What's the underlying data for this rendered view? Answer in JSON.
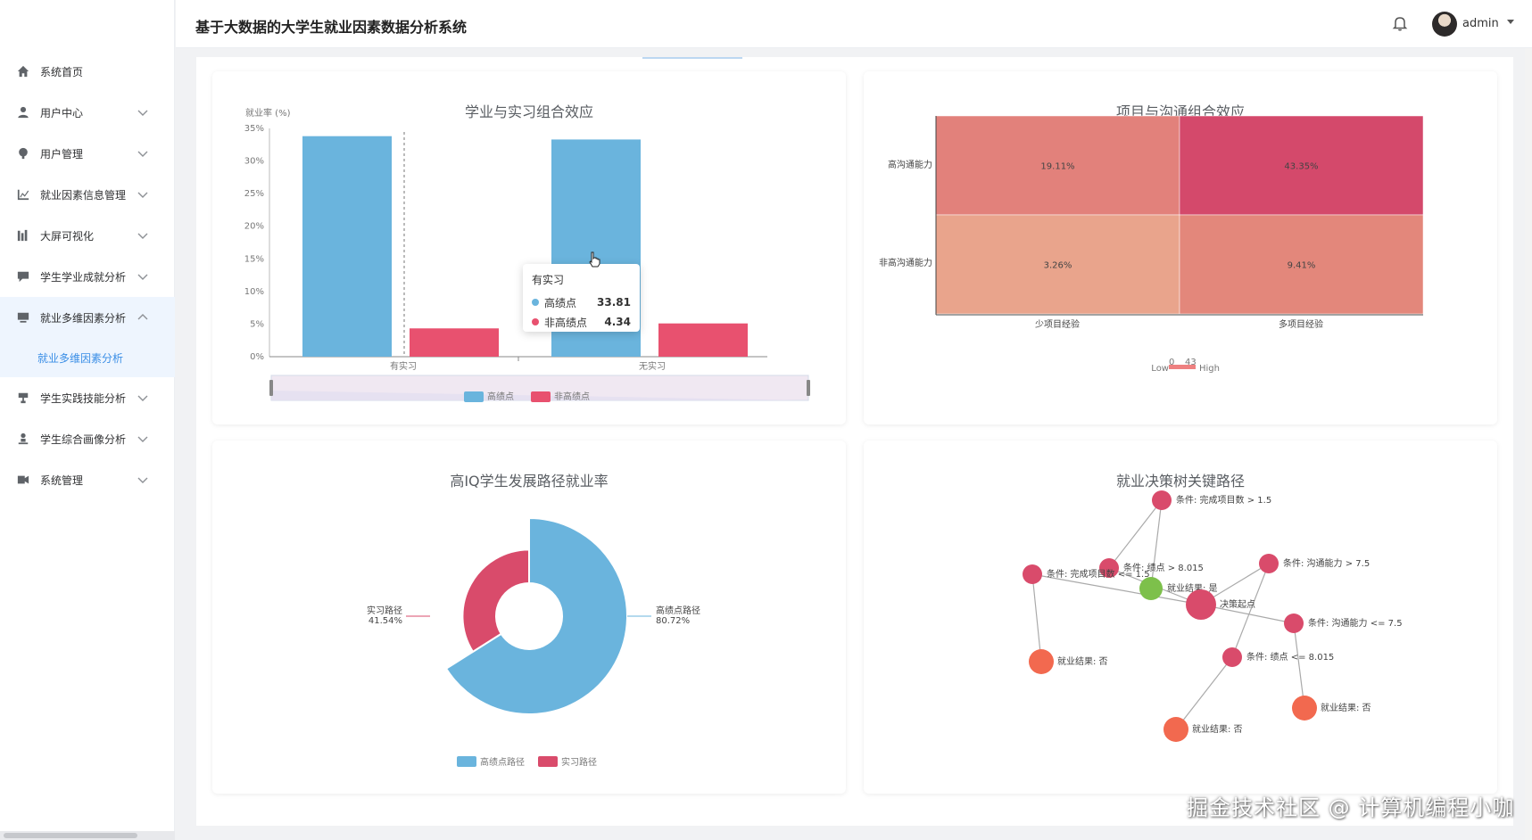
{
  "header": {
    "title": "基于大数据的大学生就业因素数据分析系统",
    "user": "admin"
  },
  "sidebar": {
    "items": [
      {
        "label": "系统首页",
        "icon": "home-icon",
        "expandable": false
      },
      {
        "label": "用户中心",
        "icon": "user-icon",
        "expandable": true
      },
      {
        "label": "用户管理",
        "icon": "user-manage-icon",
        "expandable": true
      },
      {
        "label": "就业因素信息管理",
        "icon": "chart-icon",
        "expandable": true
      },
      {
        "label": "大屏可视化",
        "icon": "bars-icon",
        "expandable": true
      },
      {
        "label": "学生学业成就分析",
        "icon": "comment-icon",
        "expandable": true
      },
      {
        "label": "就业多维因素分析",
        "icon": "monitor-icon",
        "expandable": true,
        "open": true
      },
      {
        "label": "学生实践技能分析",
        "icon": "cup-icon",
        "expandable": true
      },
      {
        "label": "学生综合画像分析",
        "icon": "person-icon",
        "expandable": true
      },
      {
        "label": "系统管理",
        "icon": "settings-icon",
        "expandable": true
      }
    ],
    "subitem": "就业多维因素分析"
  },
  "charts": {
    "c1": {
      "title": "学业与实习组合效应",
      "ylabel": "就业率 (%)",
      "yticks": [
        "35%",
        "30%",
        "25%",
        "20%",
        "15%",
        "10%",
        "5%",
        "0%"
      ],
      "legend": [
        "高绩点",
        "非高绩点"
      ],
      "tooltip": {
        "title": "有实习",
        "rows": [
          {
            "name": "高绩点",
            "value": "33.81"
          },
          {
            "name": "非高绩点",
            "value": "4.34"
          }
        ]
      }
    },
    "c2": {
      "title": "项目与沟通组合效应",
      "row_labels": [
        "高沟通能力",
        "非高沟通能力"
      ],
      "col_labels": [
        "少项目经验",
        "多项目经验"
      ],
      "cells": [
        [
          "19.11%",
          "43.35%"
        ],
        [
          "3.26%",
          "9.41%"
        ]
      ],
      "visualmap": {
        "low": "Low",
        "high": "High",
        "min": "0",
        "max": "43"
      }
    },
    "c3": {
      "title": "高IQ学生发展路径就业率",
      "slices": [
        {
          "name": "高绩点路径",
          "pct": "80.72%"
        },
        {
          "name": "实习路径",
          "pct": "41.54%"
        }
      ],
      "legend": [
        "高绩点路径",
        "实习路径"
      ]
    },
    "c4": {
      "title": "就业决策树关键路径",
      "nodes": [
        "条件: 完成项目数 > 1.5",
        "条件: 绩点 > 8.015",
        "条件: 完成项目数 <= 1.5",
        "就业结果: 是",
        "决策起点",
        "条件: 沟通能力 > 7.5",
        "条件: 沟通能力 <= 7.5",
        "条件: 绩点 <= 8.015",
        "就业结果: 否",
        "就业结果: 否",
        "就业结果: 否"
      ]
    }
  },
  "chart_data": [
    {
      "type": "bar",
      "title": "学业与实习组合效应",
      "ylabel": "就业率 (%)",
      "categories": [
        "有实习",
        "无实习"
      ],
      "series": [
        {
          "name": "高绩点",
          "values": [
            33.81,
            33.3
          ]
        },
        {
          "name": "非高绩点",
          "values": [
            4.34,
            5.1
          ]
        }
      ],
      "ylim": [
        0,
        35
      ],
      "colors": [
        "#6ab4dd",
        "#e8516f"
      ]
    },
    {
      "type": "heatmap",
      "title": "项目与沟通组合效应",
      "x": [
        "少项目经验",
        "多项目经验"
      ],
      "y": [
        "高沟通能力",
        "非高沟通能力"
      ],
      "values": [
        [
          19.11,
          43.35
        ],
        [
          3.26,
          9.41
        ]
      ],
      "range": [
        0,
        43
      ]
    },
    {
      "type": "pie",
      "title": "高IQ学生发展路径就业率",
      "slices": [
        {
          "name": "高绩点路径",
          "value": 80.72
        },
        {
          "name": "实习路径",
          "value": 41.54
        }
      ]
    }
  ],
  "colors": {
    "accent": "#3a8ee6",
    "blue": "#6ab4dd",
    "red": "#d94b6b",
    "green": "#7dc04b",
    "orange": "#f2694f"
  },
  "watermark": "掘金技术社区 @ 计算机编程小咖"
}
